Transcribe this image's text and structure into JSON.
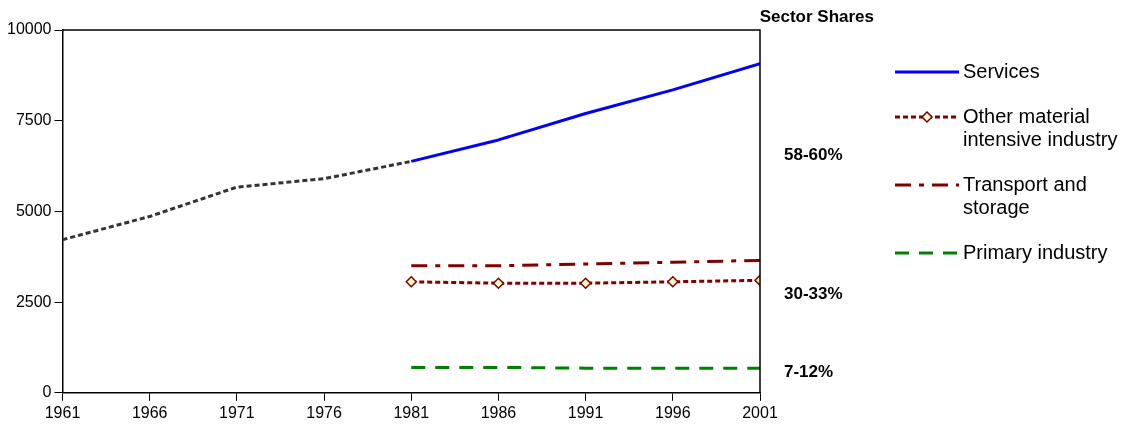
{
  "chart_data": {
    "type": "line",
    "xlim": [
      1961,
      2001
    ],
    "xticks": [
      1961,
      1966,
      1971,
      1976,
      1981,
      1986,
      1991,
      1996,
      2001
    ],
    "ylim": [
      0,
      10000
    ],
    "yticks": [
      0,
      2500,
      5000,
      7500,
      10000
    ],
    "grid": false,
    "legend": "right",
    "series": [
      {
        "color": "#333333",
        "line_style": "dotted",
        "marker": "none",
        "x": [
          1961,
          1966,
          1971,
          1976,
          1981
        ],
        "values": [
          4220,
          4860,
          5670,
          5900,
          6380
        ]
      },
      {
        "name": "Services",
        "color": "#0000ff",
        "line_style": "solid",
        "marker": "none",
        "x": [
          1981,
          1986,
          1991,
          1996,
          2001
        ],
        "values": [
          6380,
          6970,
          7700,
          8350,
          9070
        ]
      },
      {
        "name": "Other material intensive industry",
        "color": "#800000",
        "line_style": "dotted",
        "marker": "diamond",
        "x": [
          1981,
          1986,
          1991,
          1996,
          2001
        ],
        "values": [
          3060,
          3020,
          3020,
          3060,
          3100
        ]
      },
      {
        "name": "Transport and storage",
        "color": "#800000",
        "line_style": "dashdot",
        "marker": "none",
        "x": [
          1981,
          1986,
          1991,
          1996,
          2001
        ],
        "values": [
          3500,
          3500,
          3550,
          3600,
          3650
        ]
      },
      {
        "name": "Primary industry",
        "color": "#008000",
        "line_style": "dashed",
        "marker": "none",
        "x": [
          1981,
          1986,
          1991,
          1996,
          2001
        ],
        "values": [
          700,
          700,
          680,
          680,
          680
        ]
      }
    ],
    "annotations": [
      "Sector Shares",
      "58-60%",
      "30-33%",
      "7-12%"
    ]
  }
}
